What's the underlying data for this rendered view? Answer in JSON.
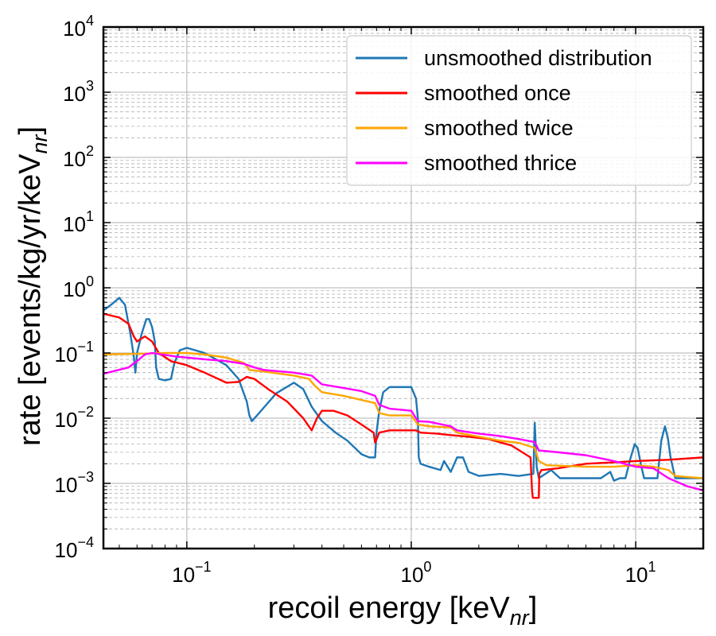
{
  "chart_data": {
    "type": "line",
    "xscale": "log",
    "yscale": "log",
    "xlim": [
      0.0425,
      20
    ],
    "ylim": [
      0.0001,
      10000
    ],
    "grid": "major and minor",
    "legend_position": "top-right",
    "xlabel": {
      "main": "recoil energy [keV",
      "sub": "nr",
      "end": "]"
    },
    "ylabel": {
      "main": "rate [events/kg/yr/keV",
      "sub": "nr",
      "end": "]"
    },
    "x_ticks": [
      {
        "value": 0.1,
        "base": "10",
        "exp": "−1"
      },
      {
        "value": 1,
        "base": "10",
        "exp": "0"
      },
      {
        "value": 10,
        "base": "10",
        "exp": "1"
      }
    ],
    "y_ticks": [
      {
        "value": 0.0001,
        "base": "10",
        "exp": "−4"
      },
      {
        "value": 0.001,
        "base": "10",
        "exp": "−3"
      },
      {
        "value": 0.01,
        "base": "10",
        "exp": "−2"
      },
      {
        "value": 0.1,
        "base": "10",
        "exp": "−1"
      },
      {
        "value": 1,
        "base": "10",
        "exp": "0"
      },
      {
        "value": 10,
        "base": "10",
        "exp": "1"
      },
      {
        "value": 100,
        "base": "10",
        "exp": "2"
      },
      {
        "value": 1000,
        "base": "10",
        "exp": "3"
      },
      {
        "value": 10000,
        "base": "10",
        "exp": "4"
      }
    ],
    "series": [
      {
        "name": "unsmoothed distribution",
        "color": "#1f77b4",
        "points": [
          [
            0.0425,
            0.45
          ],
          [
            0.046,
            0.55
          ],
          [
            0.05,
            0.7
          ],
          [
            0.053,
            0.55
          ],
          [
            0.056,
            0.2
          ],
          [
            0.058,
            0.09
          ],
          [
            0.059,
            0.05
          ],
          [
            0.06,
            0.1
          ],
          [
            0.063,
            0.2
          ],
          [
            0.066,
            0.33
          ],
          [
            0.068,
            0.33
          ],
          [
            0.07,
            0.25
          ],
          [
            0.072,
            0.15
          ],
          [
            0.073,
            0.06
          ],
          [
            0.075,
            0.04
          ],
          [
            0.08,
            0.038
          ],
          [
            0.085,
            0.04
          ],
          [
            0.088,
            0.07
          ],
          [
            0.093,
            0.11
          ],
          [
            0.1,
            0.12
          ],
          [
            0.12,
            0.1
          ],
          [
            0.15,
            0.065
          ],
          [
            0.17,
            0.04
          ],
          [
            0.185,
            0.018
          ],
          [
            0.19,
            0.011
          ],
          [
            0.195,
            0.009
          ],
          [
            0.21,
            0.012
          ],
          [
            0.25,
            0.024
          ],
          [
            0.3,
            0.035
          ],
          [
            0.33,
            0.028
          ],
          [
            0.36,
            0.015
          ],
          [
            0.4,
            0.009
          ],
          [
            0.46,
            0.006
          ],
          [
            0.52,
            0.0045
          ],
          [
            0.6,
            0.0028
          ],
          [
            0.65,
            0.0025
          ],
          [
            0.69,
            0.0025
          ],
          [
            0.7,
            0.006
          ],
          [
            0.72,
            0.013
          ],
          [
            0.75,
            0.025
          ],
          [
            0.8,
            0.03
          ],
          [
            0.9,
            0.03
          ],
          [
            1.0,
            0.03
          ],
          [
            1.05,
            0.02
          ],
          [
            1.07,
            0.01
          ],
          [
            1.08,
            0.0025
          ],
          [
            1.1,
            0.002
          ],
          [
            1.2,
            0.0018
          ],
          [
            1.35,
            0.0016
          ],
          [
            1.4,
            0.0022
          ],
          [
            1.5,
            0.0015
          ],
          [
            1.6,
            0.0025
          ],
          [
            1.7,
            0.0025
          ],
          [
            1.8,
            0.0015
          ],
          [
            2.0,
            0.0013
          ],
          [
            2.5,
            0.0014
          ],
          [
            3.0,
            0.0013
          ],
          [
            3.5,
            0.0014
          ],
          [
            3.55,
            0.0085
          ],
          [
            3.62,
            0.0018
          ],
          [
            3.7,
            0.0012
          ],
          [
            4.2,
            0.0016
          ],
          [
            4.6,
            0.0012
          ],
          [
            5.5,
            0.0012
          ],
          [
            7.0,
            0.0012
          ],
          [
            7.7,
            0.0015
          ],
          [
            8.0,
            0.0011
          ],
          [
            8.5,
            0.0012
          ],
          [
            9.0,
            0.0012
          ],
          [
            9.5,
            0.0025
          ],
          [
            9.9,
            0.004
          ],
          [
            10.2,
            0.0035
          ],
          [
            10.6,
            0.0018
          ],
          [
            10.9,
            0.0012
          ],
          [
            12.5,
            0.0012
          ],
          [
            13.0,
            0.0045
          ],
          [
            13.5,
            0.0075
          ],
          [
            13.9,
            0.005
          ],
          [
            14.3,
            0.0025
          ],
          [
            15.0,
            0.0012
          ],
          [
            17.0,
            0.0012
          ],
          [
            20.0,
            0.0012
          ]
        ]
      },
      {
        "name": "smoothed once",
        "color": "#ff0000",
        "points": [
          [
            0.0425,
            0.4
          ],
          [
            0.05,
            0.35
          ],
          [
            0.055,
            0.28
          ],
          [
            0.058,
            0.18
          ],
          [
            0.06,
            0.15
          ],
          [
            0.065,
            0.18
          ],
          [
            0.07,
            0.15
          ],
          [
            0.075,
            0.1
          ],
          [
            0.085,
            0.075
          ],
          [
            0.1,
            0.065
          ],
          [
            0.12,
            0.05
          ],
          [
            0.15,
            0.035
          ],
          [
            0.17,
            0.036
          ],
          [
            0.185,
            0.043
          ],
          [
            0.2,
            0.04
          ],
          [
            0.23,
            0.028
          ],
          [
            0.28,
            0.018
          ],
          [
            0.33,
            0.01
          ],
          [
            0.36,
            0.0065
          ],
          [
            0.38,
            0.01
          ],
          [
            0.4,
            0.013
          ],
          [
            0.45,
            0.013
          ],
          [
            0.52,
            0.011
          ],
          [
            0.6,
            0.008
          ],
          [
            0.68,
            0.006
          ],
          [
            0.69,
            0.0042
          ],
          [
            0.72,
            0.006
          ],
          [
            0.8,
            0.0065
          ],
          [
            0.9,
            0.0065
          ],
          [
            1.0,
            0.0065
          ],
          [
            1.05,
            0.0065
          ],
          [
            1.1,
            0.006
          ],
          [
            1.3,
            0.0058
          ],
          [
            1.5,
            0.0055
          ],
          [
            1.8,
            0.0052
          ],
          [
            2.2,
            0.0048
          ],
          [
            2.8,
            0.0038
          ],
          [
            3.4,
            0.0025
          ],
          [
            3.45,
            0.0008
          ],
          [
            3.48,
            0.0006
          ],
          [
            3.7,
            0.0006
          ],
          [
            3.72,
            0.0014
          ],
          [
            3.8,
            0.0016
          ],
          [
            4.5,
            0.0017
          ],
          [
            6.0,
            0.002
          ],
          [
            8.0,
            0.0021
          ],
          [
            10.0,
            0.0022
          ],
          [
            14.0,
            0.0023
          ],
          [
            20.0,
            0.0025
          ]
        ]
      },
      {
        "name": "smoothed twice",
        "color": "#ffa500",
        "points": [
          [
            0.0425,
            0.095
          ],
          [
            0.06,
            0.097
          ],
          [
            0.08,
            0.1
          ],
          [
            0.1,
            0.1
          ],
          [
            0.12,
            0.095
          ],
          [
            0.15,
            0.085
          ],
          [
            0.18,
            0.07
          ],
          [
            0.19,
            0.055
          ],
          [
            0.22,
            0.052
          ],
          [
            0.3,
            0.045
          ],
          [
            0.35,
            0.04
          ],
          [
            0.37,
            0.032
          ],
          [
            0.4,
            0.025
          ],
          [
            0.5,
            0.022
          ],
          [
            0.6,
            0.019
          ],
          [
            0.69,
            0.017
          ],
          [
            0.72,
            0.012
          ],
          [
            0.8,
            0.011
          ],
          [
            1.0,
            0.011
          ],
          [
            1.07,
            0.008
          ],
          [
            1.2,
            0.0075
          ],
          [
            1.5,
            0.0072
          ],
          [
            1.6,
            0.006
          ],
          [
            2.0,
            0.0052
          ],
          [
            2.5,
            0.0045
          ],
          [
            3.0,
            0.0042
          ],
          [
            3.55,
            0.0035
          ],
          [
            3.7,
            0.0022
          ],
          [
            4.0,
            0.0019
          ],
          [
            6.0,
            0.0018
          ],
          [
            8.0,
            0.0018
          ],
          [
            10.0,
            0.0019
          ],
          [
            12.0,
            0.0018
          ],
          [
            14.0,
            0.0016
          ],
          [
            15.0,
            0.0013
          ],
          [
            17.0,
            0.00125
          ],
          [
            20.0,
            0.0012
          ]
        ]
      },
      {
        "name": "smoothed thrice",
        "color": "#ff00ff",
        "points": [
          [
            0.0425,
            0.048
          ],
          [
            0.055,
            0.06
          ],
          [
            0.06,
            0.075
          ],
          [
            0.065,
            0.095
          ],
          [
            0.07,
            0.1
          ],
          [
            0.09,
            0.088
          ],
          [
            0.12,
            0.08
          ],
          [
            0.15,
            0.075
          ],
          [
            0.18,
            0.068
          ],
          [
            0.2,
            0.06
          ],
          [
            0.22,
            0.055
          ],
          [
            0.3,
            0.05
          ],
          [
            0.36,
            0.045
          ],
          [
            0.4,
            0.033
          ],
          [
            0.5,
            0.029
          ],
          [
            0.6,
            0.026
          ],
          [
            0.69,
            0.022
          ],
          [
            0.72,
            0.016
          ],
          [
            0.8,
            0.014
          ],
          [
            1.0,
            0.013
          ],
          [
            1.07,
            0.009
          ],
          [
            1.2,
            0.0088
          ],
          [
            1.5,
            0.0075
          ],
          [
            1.6,
            0.0065
          ],
          [
            2.0,
            0.0058
          ],
          [
            2.5,
            0.0053
          ],
          [
            3.0,
            0.0048
          ],
          [
            3.55,
            0.0043
          ],
          [
            3.7,
            0.0032
          ],
          [
            4.5,
            0.003
          ],
          [
            6.0,
            0.0027
          ],
          [
            8.0,
            0.0022
          ],
          [
            10.0,
            0.0018
          ],
          [
            12.0,
            0.0017
          ],
          [
            14.0,
            0.0012
          ],
          [
            17.0,
            0.0009
          ],
          [
            20.0,
            0.00078
          ]
        ]
      }
    ]
  }
}
